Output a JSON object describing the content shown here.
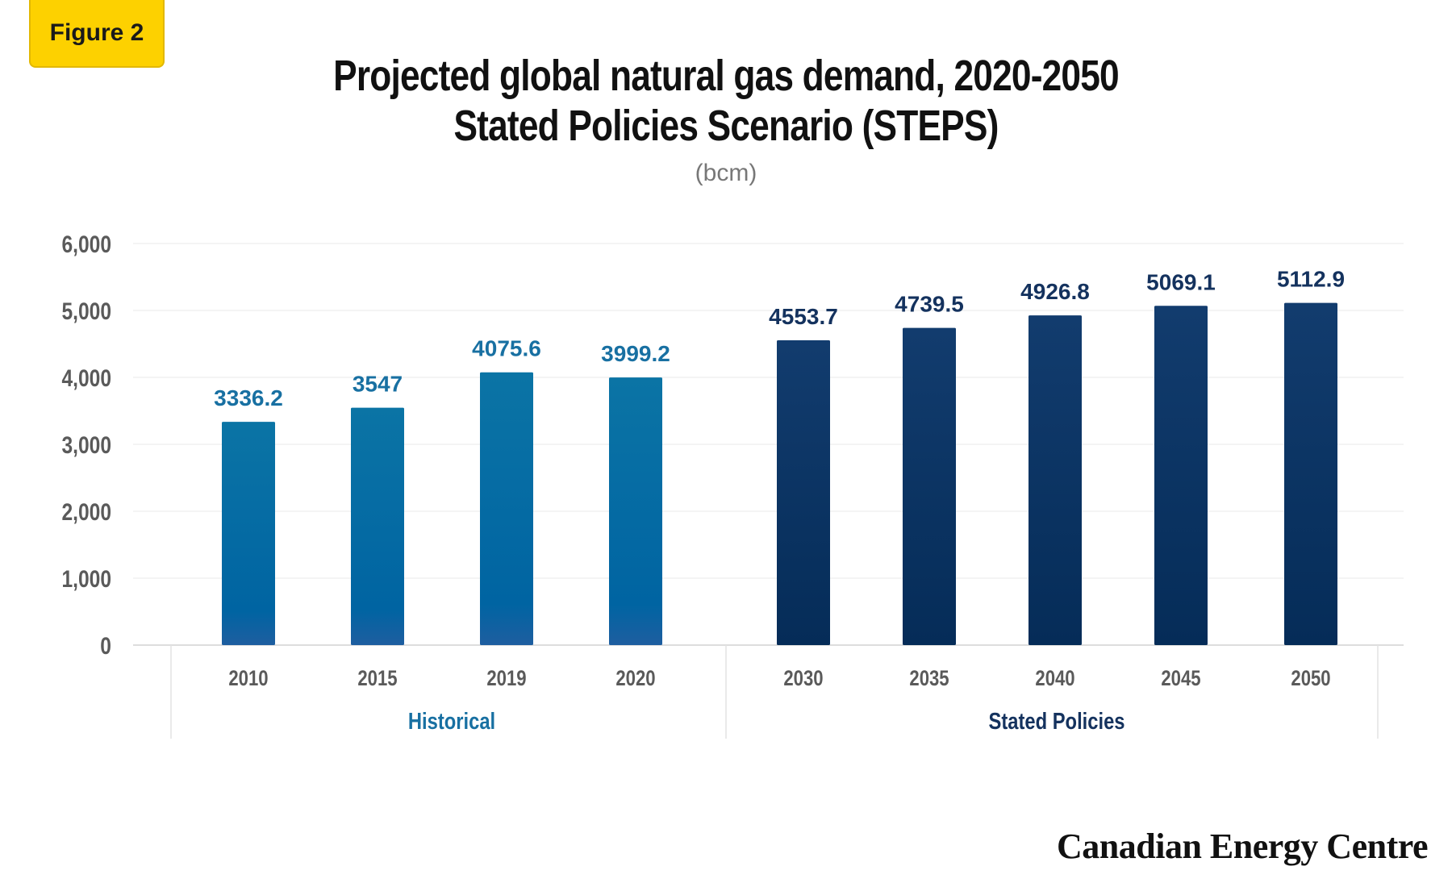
{
  "badge": "Figure 2",
  "title_line1": "Projected global natural gas demand, 2020-2050",
  "title_line2": "Stated Policies Scenario (STEPS)",
  "unit": "(bcm)",
  "logo_text": "Canadian Energy Centre",
  "colors": {
    "historical": "#0E6E9E",
    "historical_label": "#1870A2",
    "stated": "#0D3463",
    "stated_label": "#14325E",
    "badge": "#FDD100",
    "grid": "#EEEEEE",
    "tick": "#5A5A5A"
  },
  "chart_data": {
    "type": "bar",
    "title": "Projected global natural gas demand, 2020-2050 Stated Policies Scenario (STEPS)",
    "ylabel": "(bcm)",
    "ylim": [
      0,
      6000
    ],
    "yticks": [
      "0",
      "1,000",
      "2,000",
      "3,000",
      "4,000",
      "5,000",
      "6,000"
    ],
    "grid": true,
    "groups": [
      {
        "name": "Historical",
        "categories": [
          "2010",
          "2015",
          "2019",
          "2020"
        ],
        "values": [
          3336.2,
          3547,
          4075.6,
          3999.2
        ],
        "labels": [
          "3336.2",
          "3547",
          "4075.6",
          "3999.2"
        ]
      },
      {
        "name": "Stated Policies",
        "categories": [
          "2030",
          "2035",
          "2040",
          "2045",
          "2050"
        ],
        "values": [
          4553.7,
          4739.5,
          4926.8,
          5069.1,
          5112.9
        ],
        "labels": [
          "4553.7",
          "4739.5",
          "4926.8",
          "5069.1",
          "5112.9"
        ]
      }
    ]
  }
}
